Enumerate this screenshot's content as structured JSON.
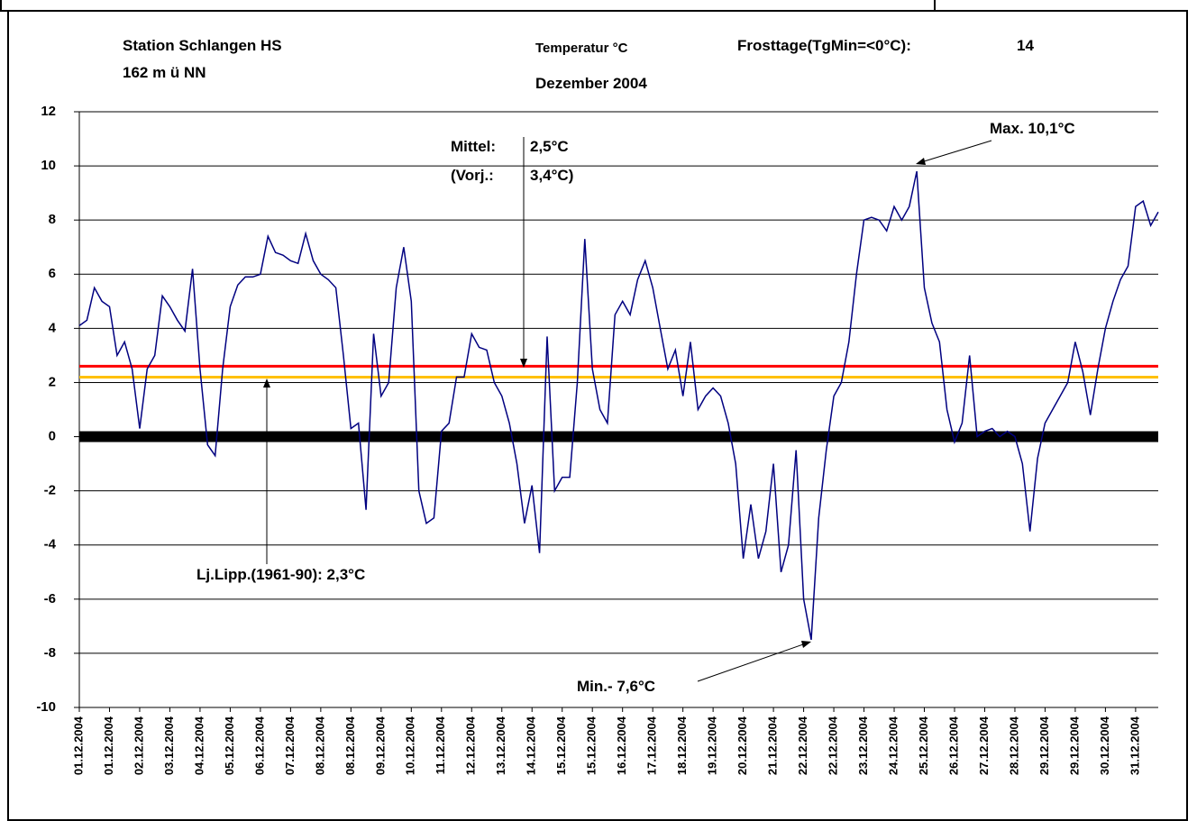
{
  "chart_data": {
    "type": "line",
    "title": "Station Schlangen HS",
    "subtitle": "162 m ü NN",
    "y_label": "Temperatur °C",
    "period": "Dezember 2004",
    "frost_label": "Frosttage(TgMin=<0°C):",
    "frost_value": "14",
    "annotations": [
      "Mittel:",
      "2,5°C",
      "(Vorj.:",
      "3,4°C)",
      "Max. 10,1°C",
      "Min.-  7,6°C",
      "Lj.Lipp.(1961-90): 2,3°C"
    ],
    "categories": [
      "01.12.2004",
      null,
      null,
      null,
      "01.12.2004",
      null,
      null,
      null,
      "02.12.2004",
      null,
      null,
      null,
      "03.12.2004",
      null,
      null,
      null,
      "04.12.2004",
      null,
      null,
      null,
      "05.12.2004",
      null,
      null,
      null,
      "06.12.2004",
      null,
      null,
      null,
      "07.12.2004",
      null,
      null,
      null,
      "08.12.2004",
      null,
      null,
      null,
      "08.12.2004",
      null,
      null,
      null,
      "09.12.2004",
      null,
      null,
      null,
      "10.12.2004",
      null,
      null,
      null,
      "11.12.2004",
      null,
      null,
      null,
      "12.12.2004",
      null,
      null,
      null,
      "13.12.2004",
      null,
      null,
      null,
      "14.12.2004",
      null,
      null,
      null,
      "15.12.2004",
      null,
      null,
      null,
      "15.12.2004",
      null,
      null,
      null,
      "16.12.2004",
      null,
      null,
      null,
      "17.12.2004",
      null,
      null,
      null,
      "18.12.2004",
      null,
      null,
      null,
      "19.12.2004",
      null,
      null,
      null,
      "20.12.2004",
      null,
      null,
      null,
      "21.12.2004",
      null,
      null,
      null,
      "22.12.2004",
      null,
      null,
      null,
      "22.12.2004",
      null,
      null,
      null,
      "23.12.2004",
      null,
      null,
      null,
      "24.12.2004",
      null,
      null,
      null,
      "25.12.2004",
      null,
      null,
      null,
      "26.12.2004",
      null,
      null,
      null,
      "27.12.2004",
      null,
      null,
      null,
      "28.12.2004",
      null,
      null,
      null,
      "29.12.2004",
      null,
      null,
      null,
      "29.12.2004",
      null,
      null,
      null,
      "30.12.2004",
      null,
      null,
      null,
      "31.12.2004",
      null,
      null,
      null
    ],
    "series": [
      {
        "color": "#000080",
        "values": [
          4.1,
          4.3,
          5.5,
          5.0,
          4.8,
          3.0,
          3.5,
          2.5,
          0.3,
          2.5,
          3.0,
          5.2,
          4.8,
          4.3,
          3.9,
          6.2,
          2.5,
          -0.3,
          -0.7,
          2.5,
          4.8,
          5.6,
          5.9,
          5.9,
          6.0,
          7.4,
          6.8,
          6.7,
          6.5,
          6.4,
          7.5,
          6.5,
          6.0,
          5.8,
          5.5,
          3.0,
          0.3,
          0.5,
          -2.7,
          3.8,
          1.5,
          2.0,
          5.5,
          7.0,
          5.0,
          -2.0,
          -3.2,
          -3.0,
          0.2,
          0.5,
          2.2,
          2.2,
          3.8,
          3.3,
          3.2,
          2.0,
          1.5,
          0.5,
          -1.0,
          -3.2,
          -1.8,
          -4.3,
          3.7,
          -2.0,
          -1.5,
          -1.5,
          2.0,
          7.3,
          2.5,
          1.0,
          0.5,
          4.5,
          5.0,
          4.5,
          5.8,
          6.5,
          5.5,
          4.0,
          2.5,
          3.2,
          1.5,
          3.5,
          1.0,
          1.5,
          1.8,
          1.5,
          0.5,
          -1.0,
          -4.5,
          -2.5,
          -4.5,
          -3.5,
          -1.0,
          -5.0,
          -4.0,
          -0.5,
          -6.0,
          -7.5,
          -3.0,
          -0.5,
          1.5,
          2.0,
          3.5,
          6.0,
          8.0,
          8.1,
          8.0,
          7.6,
          8.5,
          8.0,
          8.5,
          9.8,
          5.5,
          4.2,
          3.5,
          1.0,
          -0.2,
          0.5,
          3.0,
          0.0,
          0.2,
          0.3,
          0.0,
          0.2,
          0.0,
          -1.0,
          -3.5,
          -0.8,
          0.5,
          1.0,
          1.5,
          2.0,
          3.5,
          2.4,
          0.8,
          2.5,
          4.0,
          5.0,
          5.8,
          6.3,
          8.5,
          8.7,
          7.8,
          8.3
        ]
      }
    ],
    "reference_lines": [
      {
        "value": 2.6,
        "color": "#ff0000"
      },
      {
        "value": 2.2,
        "color": "#ffc000"
      },
      {
        "value": 0,
        "color": "#000000"
      }
    ],
    "ylim": [
      -10,
      12
    ],
    "yticks": [
      -10,
      -8,
      -6,
      -4,
      -2,
      0,
      2,
      4,
      6,
      8,
      10,
      12
    ],
    "grid": true
  }
}
